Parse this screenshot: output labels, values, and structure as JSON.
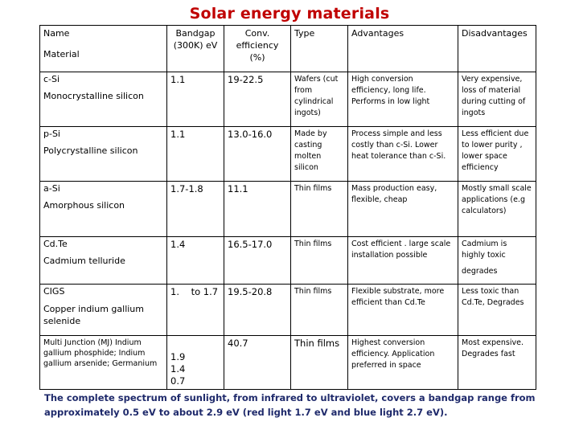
{
  "title": "Solar energy materials",
  "headers": {
    "name": "Name",
    "material": "Material",
    "bandgap": "Bandgap (300K) eV",
    "efficiency": "Conv. efficiency (%)",
    "type": "Type",
    "advantages": "Advantages",
    "disadvantages": "Disadvantages"
  },
  "rows": [
    {
      "name": "c-Si",
      "material": "Monocrystalline silicon",
      "bandgap": "1.1",
      "efficiency": "19-22.5",
      "type": "Wafers (cut from cylindrical ingots)",
      "advantages": "High conversion efficiency,  long life. Performs in low light",
      "disadvantages": "Very expensive, loss of material during cutting of ingots"
    },
    {
      "name": "p-Si",
      "material": "Polycrystalline silicon",
      "bandgap": "1.1",
      "efficiency": "13.0-16.0",
      "type": "Made by casting molten silicon",
      "advantages": "Process simple and less costly than c-Si. Lower heat tolerance than c-Si.",
      "disadvantages": "Less efficient due to lower purity , lower space efficiency"
    },
    {
      "name": "a-Si",
      "material": "Amorphous silicon",
      "bandgap": "1.7-1.8",
      "efficiency": "11.1",
      "type": "Thin films",
      "advantages": "Mass production easy, flexible, cheap",
      "disadvantages": "Mostly small scale applications (e.g calculators)"
    },
    {
      "name": "Cd.Te",
      "material": "Cadmium telluride",
      "bandgap": "1.4",
      "efficiency": "16.5-17.0",
      "type": "Thin films",
      "advantages": "Cost efficient . large scale installation possible",
      "disadvantages": "Cadmium is highly toxic",
      "disadvantages_extra": "degrades"
    },
    {
      "name": "CIGS",
      "material": "Copper indium gallium selenide",
      "bandgap": "1.    to 1.7",
      "efficiency": "19.5-20.8",
      "type": "Thin films",
      "advantages": "Flexible substrate, more efficient than Cd.Te",
      "disadvantages": "Less toxic than Cd.Te, Degrades"
    },
    {
      "name": "Multi Junction (MJ) Indium gallium phosphide; Indium gallium arsenide; Germanium",
      "bandgap_lines": [
        "1.9",
        "1.4",
        "0.7"
      ],
      "efficiency": "40.7",
      "type": "Thin films",
      "advantages": "Highest conversion efficiency. Application preferred in space",
      "disadvantages": "Most expensive. Degrades fast"
    }
  ],
  "footer": "The complete spectrum of sunlight, from infrared to ultraviolet, covers a bandgap range from approximately 0.5 eV to about 2.9 eV (red light  1.7 eV and blue light 2.7 eV)."
}
